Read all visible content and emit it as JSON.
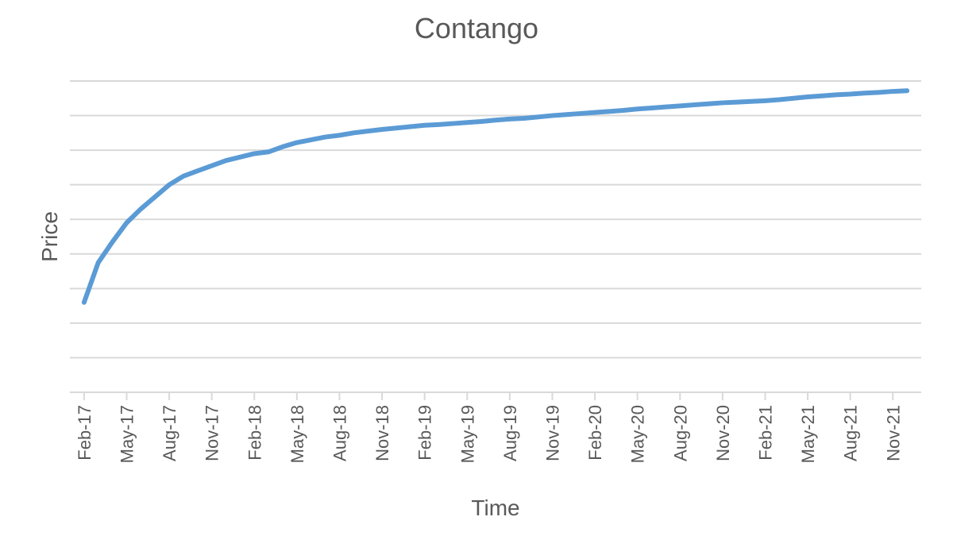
{
  "chart_data": {
    "type": "line",
    "title": "Contango",
    "xlabel": "Time",
    "ylabel": "Price",
    "x_tick_labels": [
      "Feb-17",
      "May-17",
      "Aug-17",
      "Nov-17",
      "Feb-18",
      "May-18",
      "Aug-18",
      "Nov-18",
      "Feb-19",
      "May-19",
      "Aug-19",
      "Nov-19",
      "Feb-20",
      "May-20",
      "Aug-20",
      "Nov-20",
      "Feb-21",
      "May-21",
      "Aug-21",
      "Nov-21"
    ],
    "y_tick_labels_shown": false,
    "grid": true,
    "horizontal_gridline_count": 9,
    "color": "#5b9bd5",
    "series": [
      {
        "x": [
          "2017-02",
          "2017-03",
          "2017-04",
          "2017-05",
          "2017-06",
          "2017-07",
          "2017-08",
          "2017-09",
          "2017-10",
          "2017-11",
          "2017-12",
          "2018-01",
          "2018-02",
          "2018-03",
          "2018-04",
          "2018-05",
          "2018-06",
          "2018-07",
          "2018-08",
          "2018-09",
          "2018-10",
          "2018-11",
          "2018-12",
          "2019-01",
          "2019-02",
          "2019-03",
          "2019-04",
          "2019-05",
          "2019-06",
          "2019-07",
          "2019-08",
          "2019-09",
          "2019-10",
          "2019-11",
          "2019-12",
          "2020-01",
          "2020-02",
          "2020-03",
          "2020-04",
          "2020-05",
          "2020-06",
          "2020-07",
          "2020-08",
          "2020-09",
          "2020-10",
          "2020-11",
          "2020-12",
          "2021-01",
          "2021-02",
          "2021-03",
          "2021-04",
          "2021-05",
          "2021-06",
          "2021-07",
          "2021-08",
          "2021-09",
          "2021-10",
          "2021-11",
          "2021-12"
        ],
        "values": [
          2.6,
          3.75,
          4.35,
          4.9,
          5.3,
          5.65,
          6.0,
          6.25,
          6.4,
          6.55,
          6.7,
          6.8,
          6.9,
          6.95,
          7.1,
          7.22,
          7.3,
          7.38,
          7.43,
          7.5,
          7.55,
          7.6,
          7.64,
          7.68,
          7.72,
          7.74,
          7.77,
          7.8,
          7.83,
          7.87,
          7.9,
          7.92,
          7.96,
          8.0,
          8.03,
          8.06,
          8.09,
          8.12,
          8.15,
          8.19,
          8.22,
          8.25,
          8.28,
          8.31,
          8.34,
          8.37,
          8.39,
          8.41,
          8.43,
          8.46,
          8.5,
          8.54,
          8.57,
          8.6,
          8.62,
          8.65,
          8.67,
          8.7,
          8.72
        ]
      }
    ],
    "ylim": [
      0,
      9
    ]
  }
}
